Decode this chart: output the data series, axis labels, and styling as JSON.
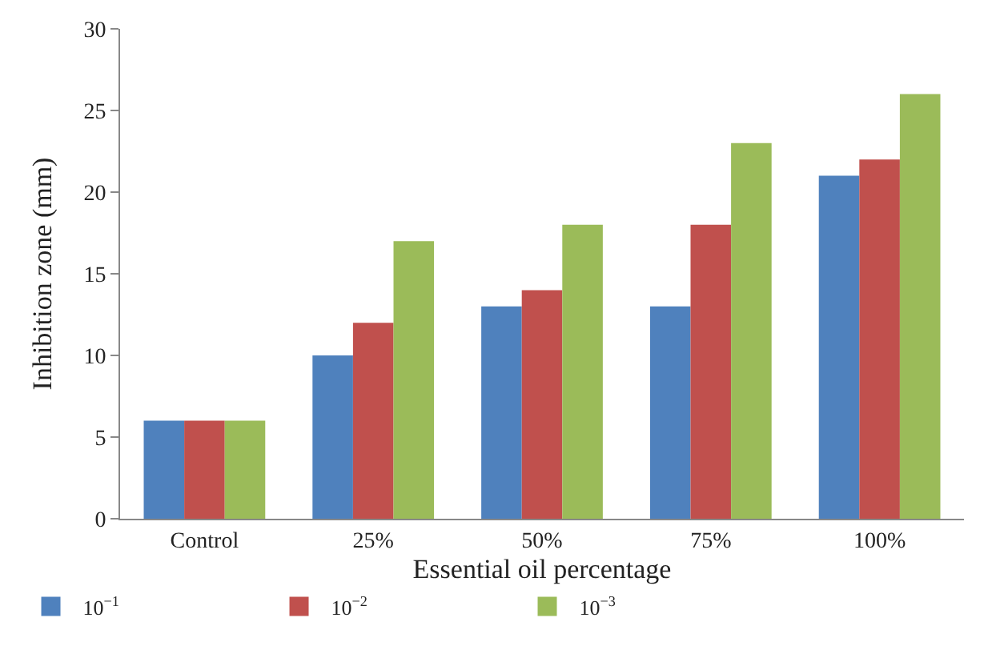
{
  "chart_data": {
    "type": "bar",
    "xlabel": "Essential oil percentage",
    "ylabel": "Inhibition zone (mm)",
    "categories": [
      "Control",
      "25%",
      "50%",
      "75%",
      "100%"
    ],
    "series": [
      {
        "name": "10$^{−1}$",
        "color": "#4f81bd",
        "values": [
          6,
          10,
          13,
          13,
          21
        ]
      },
      {
        "name": "10$^{−2}$",
        "color": "#c0504d",
        "values": [
          6,
          12,
          14,
          18,
          22
        ]
      },
      {
        "name": "10$^{−3}$",
        "color": "#9bbb59",
        "values": [
          6,
          17,
          18,
          23,
          26
        ]
      }
    ],
    "ylim": [
      0,
      30
    ],
    "yticks": [
      0,
      5,
      10,
      15,
      20,
      25,
      30
    ],
    "grid": false,
    "legend": "bottom left"
  }
}
